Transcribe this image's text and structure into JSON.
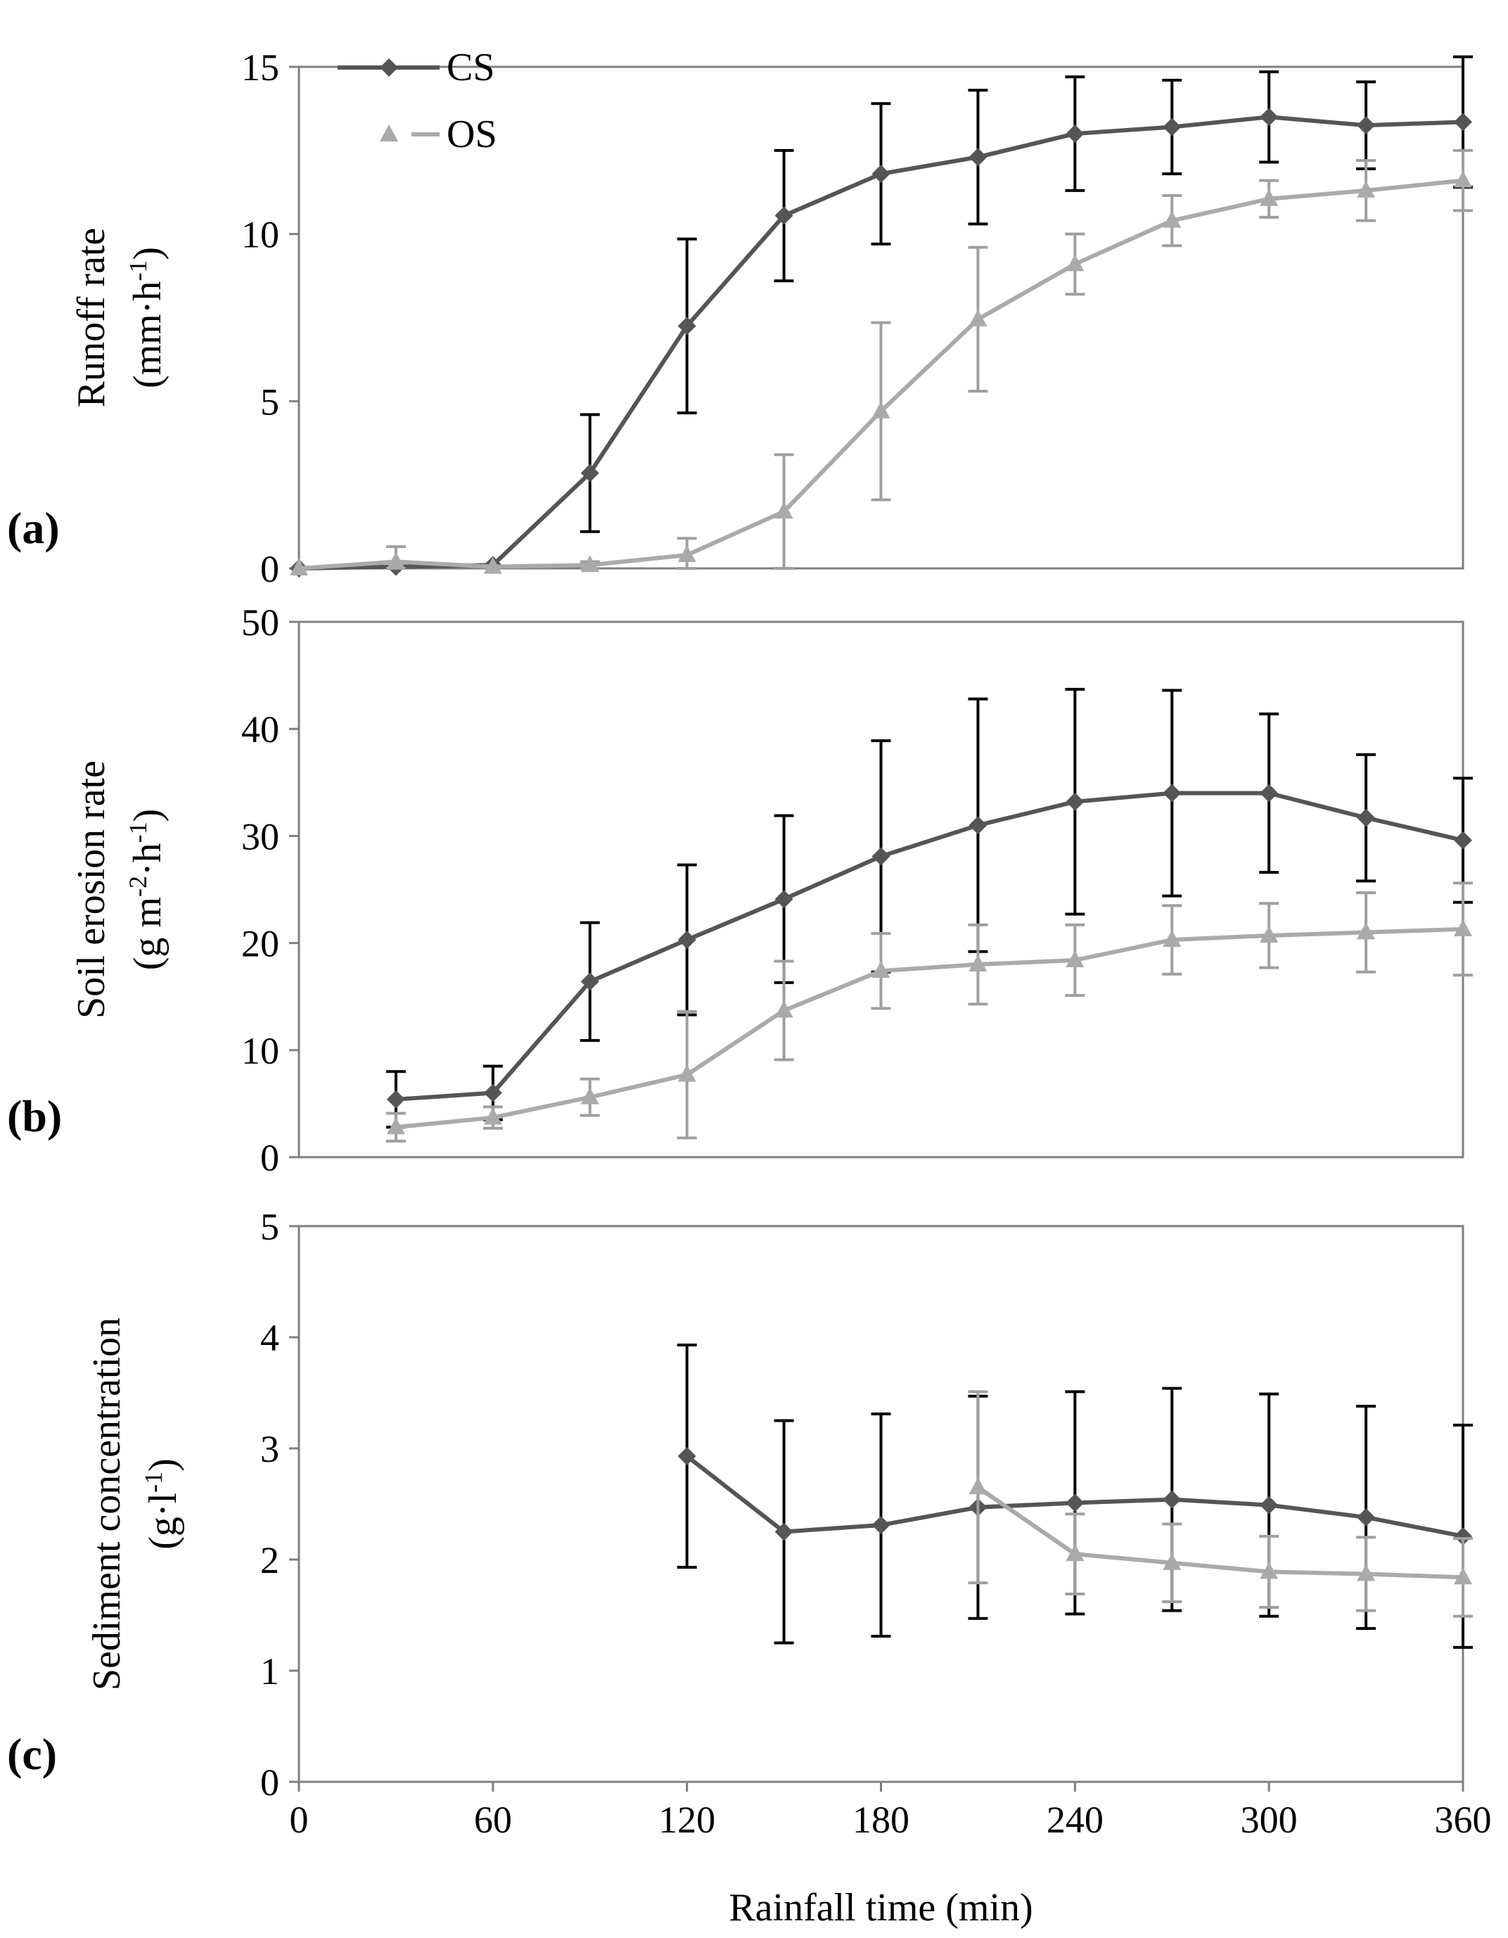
{
  "chart_data": [
    {
      "type": "line",
      "panel_label": "(a)",
      "ylabel_lines": [
        "Runoff rate",
        "(mm·h",
        "-1",
        ")"
      ],
      "ylim": [
        0,
        15
      ],
      "yticks": [
        0,
        5,
        10,
        15
      ],
      "x": [
        0,
        30,
        60,
        90,
        120,
        150,
        180,
        210,
        240,
        270,
        300,
        330,
        360
      ],
      "xlim": [
        0,
        360
      ],
      "legend": {
        "position": "top-left",
        "entries": [
          "CS",
          "OS"
        ]
      },
      "series": [
        {
          "name": "CS",
          "color": "#555555",
          "marker": "diamond",
          "values": [
            0,
            0.05,
            0.1,
            2.85,
            7.25,
            10.55,
            11.8,
            12.3,
            13.0,
            13.2,
            13.5,
            13.25,
            13.35
          ],
          "errors": [
            0,
            0,
            0,
            1.75,
            2.6,
            1.95,
            2.1,
            2.0,
            1.7,
            1.4,
            1.35,
            1.3,
            1.95
          ]
        },
        {
          "name": "OS",
          "color": "#aaaaaa",
          "marker": "triangle",
          "values": [
            0,
            0.2,
            0.05,
            0.1,
            0.4,
            1.7,
            4.7,
            7.45,
            9.1,
            10.4,
            11.05,
            11.3,
            11.6
          ],
          "errors": [
            0,
            0.45,
            0,
            0.1,
            0.5,
            1.7,
            2.65,
            2.15,
            0.9,
            0.75,
            0.55,
            0.9,
            0.9
          ]
        }
      ]
    },
    {
      "type": "line",
      "panel_label": "(b)",
      "ylabel_lines": [
        "Soil erosion rate",
        "(g m",
        "-2",
        "·h",
        "-1",
        ")"
      ],
      "ylim": [
        0,
        50
      ],
      "yticks": [
        0,
        10,
        20,
        30,
        40,
        50
      ],
      "x": [
        30,
        60,
        90,
        120,
        150,
        180,
        210,
        240,
        270,
        300,
        330,
        360
      ],
      "xlim": [
        0,
        360
      ],
      "series": [
        {
          "name": "CS",
          "color": "#555555",
          "marker": "diamond",
          "values": [
            5.4,
            6.0,
            16.4,
            20.3,
            24.1,
            28.1,
            31.0,
            33.2,
            34.0,
            34.0,
            31.7,
            29.6
          ],
          "errors": [
            2.6,
            2.5,
            5.5,
            7.0,
            7.8,
            10.8,
            11.8,
            10.5,
            9.6,
            7.4,
            5.9,
            5.8
          ]
        },
        {
          "name": "OS",
          "color": "#aaaaaa",
          "marker": "triangle",
          "values": [
            2.8,
            3.7,
            5.6,
            7.7,
            13.7,
            17.4,
            18.0,
            18.4,
            20.3,
            20.7,
            21.0,
            21.3
          ],
          "errors": [
            1.3,
            1.0,
            1.7,
            5.9,
            4.6,
            3.5,
            3.7,
            3.3,
            3.2,
            3.0,
            3.7,
            4.3
          ]
        }
      ]
    },
    {
      "type": "line",
      "panel_label": "(c)",
      "ylabel_lines": [
        "Sediment concentration",
        "(g·l",
        "-1",
        ")"
      ],
      "ylim": [
        0,
        5
      ],
      "yticks": [
        0,
        1,
        2,
        3,
        4,
        5
      ],
      "x": [
        120,
        150,
        180,
        210,
        240,
        270,
        300,
        330,
        360
      ],
      "xlim": [
        0,
        360
      ],
      "xticks": [
        0,
        60,
        120,
        180,
        240,
        300,
        360
      ],
      "xlabel": "Rainfall time (min)",
      "series": [
        {
          "name": "CS",
          "color": "#555555",
          "marker": "diamond",
          "x": [
            120,
            150,
            180,
            210,
            240,
            270,
            300,
            330,
            360
          ],
          "values": [
            2.93,
            2.25,
            2.31,
            2.47,
            2.51,
            2.54,
            2.49,
            2.38,
            2.21
          ],
          "errors": [
            1.0,
            1.0,
            1.0,
            1.0,
            1.0,
            1.0,
            1.0,
            1.0,
            1.0
          ]
        },
        {
          "name": "OS",
          "color": "#aaaaaa",
          "marker": "triangle",
          "x": [
            210,
            240,
            270,
            300,
            330,
            360
          ],
          "values": [
            2.65,
            2.05,
            1.97,
            1.89,
            1.87,
            1.84
          ],
          "errors": [
            0.86,
            0.36,
            0.35,
            0.32,
            0.33,
            0.35
          ]
        }
      ]
    }
  ]
}
